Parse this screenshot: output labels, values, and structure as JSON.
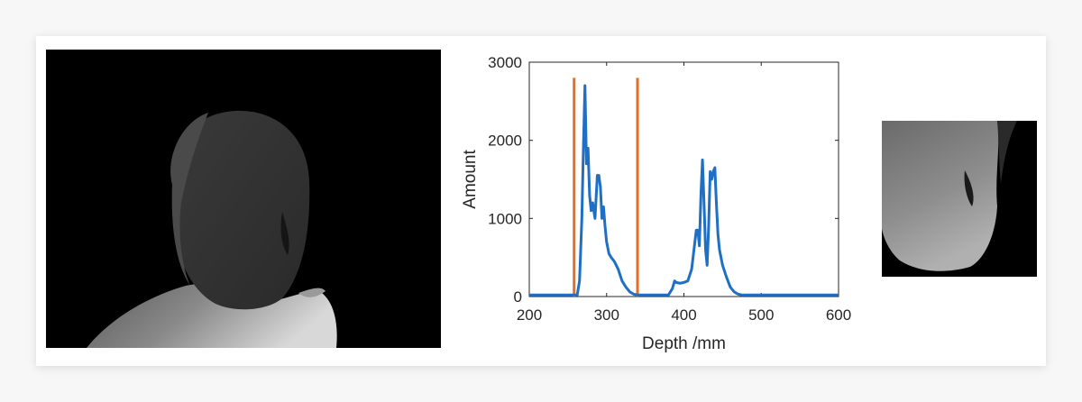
{
  "chart_data": {
    "type": "line",
    "title": "",
    "xlabel": "Depth /mm",
    "ylabel": "Amount",
    "xlim": [
      200,
      600
    ],
    "ylim": [
      0,
      3000
    ],
    "xticks": [
      200,
      300,
      400,
      500,
      600
    ],
    "yticks": [
      0,
      1000,
      2000,
      3000
    ],
    "grid": false,
    "legend": "none",
    "series": [
      {
        "color": "#1f6fc5",
        "x": [
          200,
          255,
          262,
          265,
          268,
          270,
          272,
          274,
          276,
          278,
          280,
          282,
          285,
          288,
          290,
          292,
          294,
          296,
          298,
          300,
          303,
          306,
          310,
          315,
          320,
          325,
          330,
          335,
          340,
          345,
          355,
          365,
          380,
          385,
          388,
          390,
          395,
          400,
          405,
          410,
          413,
          416,
          418,
          420,
          422,
          424,
          426,
          428,
          430,
          432,
          434,
          436,
          438,
          440,
          442,
          444,
          446,
          448,
          450,
          455,
          460,
          465,
          470,
          475,
          480,
          500,
          550,
          600
        ],
        "y": [
          20,
          20,
          20,
          200,
          1000,
          1900,
          2700,
          1700,
          1900,
          1300,
          1100,
          1200,
          1000,
          1550,
          1550,
          1400,
          1000,
          1150,
          900,
          700,
          550,
          500,
          450,
          350,
          200,
          120,
          60,
          30,
          20,
          20,
          20,
          20,
          20,
          100,
          200,
          180,
          170,
          180,
          200,
          350,
          600,
          850,
          850,
          650,
          1300,
          1750,
          1200,
          600,
          400,
          900,
          1600,
          1500,
          1600,
          1650,
          1200,
          800,
          600,
          500,
          400,
          250,
          120,
          60,
          30,
          20,
          20,
          20,
          20,
          20
        ]
      }
    ],
    "vlines": [
      {
        "x": 258,
        "y_top": 2800,
        "color": "#e07028"
      },
      {
        "x": 340,
        "y_top": 2800,
        "color": "#e07028"
      }
    ],
    "axis_color": "#262626",
    "tick_text_color": "#262626"
  },
  "colors": {
    "background": "#ffffff",
    "depth_background": "#000000"
  }
}
